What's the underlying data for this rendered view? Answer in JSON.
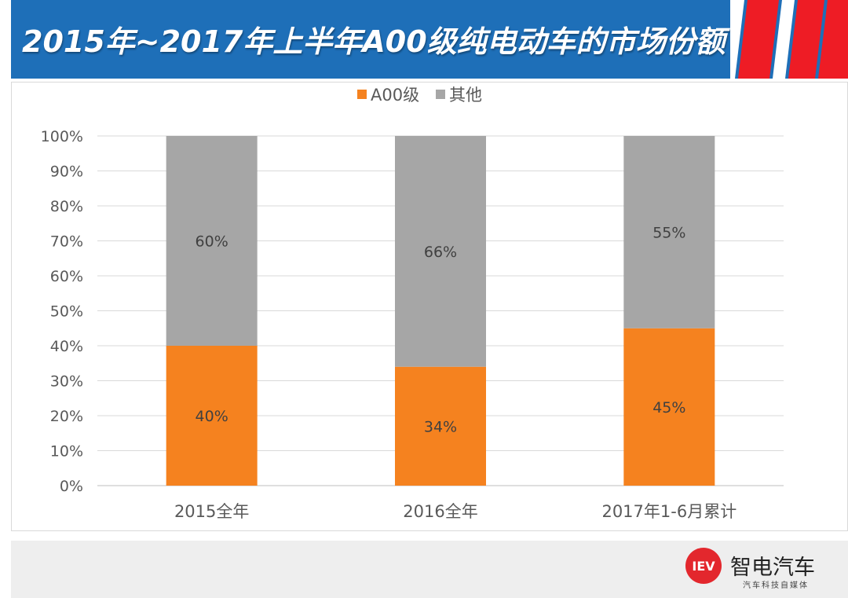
{
  "title": "2015年~2017年上半年A00级纯电动车的市场份额",
  "colors": {
    "title_bg": "#1e6fb8",
    "accent_red": "#ee1c25",
    "a00": "#f5821f",
    "other": "#a6a6a6",
    "logo_red": "#e3272d"
  },
  "chart_data": {
    "type": "bar",
    "stacked": true,
    "categories": [
      "2015全年",
      "2016全年",
      "2017年1-6月累计"
    ],
    "series": [
      {
        "name": "A00级",
        "values": [
          40,
          34,
          45
        ],
        "labels": [
          "40%",
          "34%",
          "45%"
        ],
        "color": "#f5821f"
      },
      {
        "name": "其他",
        "values": [
          60,
          66,
          55
        ],
        "labels": [
          "60%",
          "66%",
          "55%"
        ],
        "color": "#a6a6a6"
      }
    ],
    "ylim": [
      0,
      100
    ],
    "yticks": [
      "0%",
      "10%",
      "20%",
      "30%",
      "40%",
      "50%",
      "60%",
      "70%",
      "80%",
      "90%",
      "100%"
    ],
    "grid": true,
    "legend_position": "top-center"
  },
  "brand": {
    "logo_text": "IEV",
    "name": "智电汽车",
    "subtitle": "汽车科技自媒体",
    "logo_icon": "iev-logo-icon"
  }
}
